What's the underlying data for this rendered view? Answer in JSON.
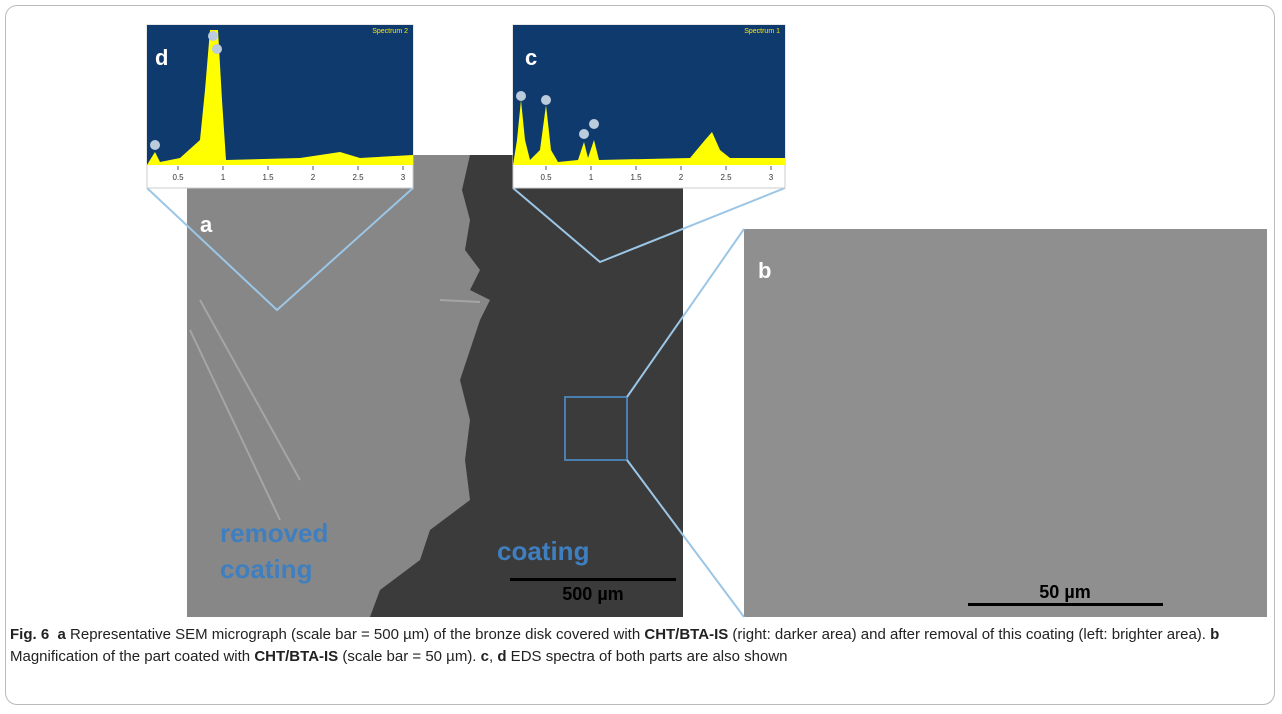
{
  "panels": [
    {
      "label": "a",
      "region_labels": [
        "removed",
        "coating",
        "coating"
      ],
      "scale": "500 µm"
    },
    {
      "label": "b",
      "scale": "50 µm"
    }
  ],
  "spectra": [
    {
      "label": "d",
      "name": "Spectrum 2",
      "ticks": [
        "0.5",
        "1",
        "1.5",
        "2",
        "2.5",
        "3"
      ]
    },
    {
      "label": "c",
      "name": "Spectrum 1",
      "ticks": [
        "0.5",
        "1",
        "1.5",
        "2",
        "2.5",
        "3"
      ]
    }
  ],
  "caption": [
    {
      "text": "Fig. 6",
      "bold": true
    },
    {
      "text": "  a",
      "bold": true
    },
    {
      "text": " Representative SEM micrograph (scale bar = 500 µm) of the bronze disk covered with ",
      "bold": false
    },
    {
      "text": "CHT/BTA-IS",
      "bold": true
    },
    {
      "text": " (right: darker area) and after removal of this coating (left: brighter area). ",
      "bold": false
    },
    {
      "text": "b",
      "bold": true
    },
    {
      "text": " Magnification of the part coated with ",
      "bold": false
    },
    {
      "text": "CHT/BTA-IS",
      "bold": true
    },
    {
      "text": " (scale bar = 50 µm). ",
      "bold": false
    },
    {
      "text": "c",
      "bold": true
    },
    {
      "text": ", ",
      "bold": false
    },
    {
      "text": "d",
      "bold": true
    },
    {
      "text": " EDS spectra of both parts are also shown",
      "bold": false
    }
  ]
}
